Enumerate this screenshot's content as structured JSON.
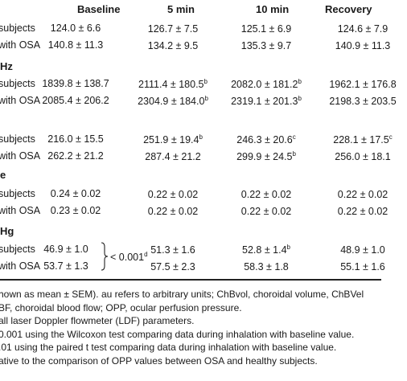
{
  "header": {
    "baseline": "Baseline",
    "min5": "5 min",
    "min10": "10 min",
    "recovery": "Recovery"
  },
  "sections": [
    {
      "label": "",
      "rows": [
        {
          "label": "subjects",
          "baseline": "124.0 ± 6.6",
          "min5": "126.7 ± 7.5",
          "min5_sup": "",
          "min10": "125.1 ± 6.9",
          "min10_sup": "",
          "recovery": "124.6 ± 7.9",
          "recovery_sup": ""
        },
        {
          "label": "with OSA",
          "baseline": "140.8 ± 11.3",
          "min5": "134.2 ± 9.5",
          "min5_sup": "",
          "min10": "135.3 ± 9.7",
          "min10_sup": "",
          "recovery": "140.9 ± 11.3",
          "recovery_sup": ""
        }
      ]
    },
    {
      "label": "Hz",
      "rows": [
        {
          "label": "subjects",
          "baseline": "1839.8 ± 138.7",
          "min5": "2111.4 ± 180.5",
          "min5_sup": "b",
          "min10": "2082.0 ± 181.2",
          "min10_sup": "b",
          "recovery": "1962.1 ± 176.8",
          "recovery_sup": ""
        },
        {
          "label": "with OSA",
          "baseline": "2085.4 ± 206.2",
          "min5": "2304.9 ± 184.0",
          "min5_sup": "b",
          "min10": "2319.1 ± 201.3",
          "min10_sup": "b",
          "recovery": "2198.3 ± 203.5",
          "recovery_sup": ""
        }
      ]
    },
    {
      "label": "",
      "rows": [
        {
          "label": "subjects",
          "baseline": "216.0 ± 15.5",
          "min5": "251.9 ± 19.4",
          "min5_sup": "b",
          "min10": "246.3 ± 20.6",
          "min10_sup": "c",
          "recovery": "228.1 ± 17.5",
          "recovery_sup": "c"
        },
        {
          "label": "with OSA",
          "baseline": "262.2 ± 21.2",
          "min5": "287.4 ± 21.2",
          "min5_sup": "",
          "min10": "299.9 ± 24.5",
          "min10_sup": "b",
          "recovery": "256.0 ± 18.1",
          "recovery_sup": ""
        }
      ]
    },
    {
      "label": "e",
      "rows": [
        {
          "label": "subjects",
          "baseline": "0.24 ± 0.02",
          "min5": "0.22 ± 0.02",
          "min5_sup": "",
          "min10": "0.22 ± 0.02",
          "min10_sup": "",
          "recovery": "0.22 ± 0.02",
          "recovery_sup": ""
        },
        {
          "label": "with OSA",
          "baseline": "0.23 ± 0.02",
          "min5": "0.22 ± 0.02",
          "min5_sup": "",
          "min10": "0.22 ± 0.02",
          "min10_sup": "",
          "recovery": "0.22 ± 0.02",
          "recovery_sup": ""
        }
      ]
    },
    {
      "label": "Hg",
      "rows": [
        {
          "label": "subjects",
          "baseline": "46.9 ± 1.0",
          "min5": "51.3 ± 1.6",
          "min5_sup": "",
          "min10": "52.8 ± 1.4",
          "min10_sup": "b",
          "recovery": "48.9 ± 1.0",
          "recovery_sup": ""
        },
        {
          "label": "with OSA",
          "baseline": "53.7 ± 1.3",
          "min5": "57.5 ± 2.3",
          "min5_sup": "",
          "min10": "58.3 ± 1.8",
          "min10_sup": "",
          "recovery": "55.1 ± 1.6",
          "recovery_sup": ""
        }
      ]
    }
  ],
  "pvalue": {
    "text": "< 0.001",
    "sup": "d"
  },
  "notes": [
    "hown as mean ± SEM). au refers to arbitrary units; ChBvol, choroidal volume, ChBVel",
    "BF, choroidal blood flow; OPP, ocular perfusion pressure.",
    " all laser Doppler flowmeter (LDF) parameters.",
    "0.001 using the Wilcoxon test comparing data during inhalation with baseline value.",
    ".01 using the paired t test comparing data during inhalation with baseline value.",
    "ative to the comparison of OPP values between OSA and healthy subjects."
  ]
}
